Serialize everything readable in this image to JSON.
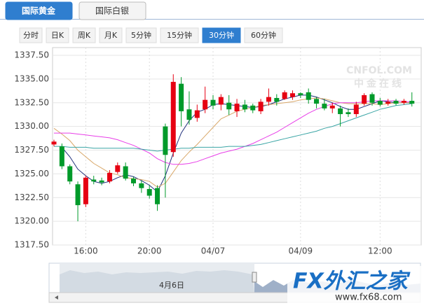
{
  "tabs": [
    "国际黄金",
    "国际白银"
  ],
  "active_tab": 0,
  "periods": [
    "分时",
    "日K",
    "周K",
    "月K",
    "5分钟",
    "15分钟",
    "30分钟",
    "60分钟"
  ],
  "active_period": 6,
  "watermark": {
    "title": "CNFOL.COM",
    "subtitle": "中金在线"
  },
  "logo": {
    "title": "FX外汇之家",
    "url": "www.fx68.com"
  },
  "navigator_label": "4月6日",
  "chart_data": {
    "type": "candlestick",
    "categories": [
      null,
      null,
      null,
      null,
      "16:00",
      null,
      null,
      null,
      null,
      null,
      null,
      null,
      "20:00",
      null,
      null,
      null,
      null,
      null,
      null,
      null,
      "04/07",
      null,
      null,
      null,
      null,
      null,
      null,
      null,
      null,
      null,
      null,
      "04/09",
      null,
      null,
      null,
      null,
      null,
      null,
      null,
      null,
      null,
      "12:00",
      null,
      null,
      null,
      null
    ],
    "open": [
      1328.1,
      1327.9,
      1325.8,
      1323.9,
      1321.8,
      1324.4,
      1324.3,
      1324.2,
      1325.2,
      1325.8,
      1324.5,
      1324.0,
      1323.4,
      1323.5,
      1330.0,
      1327.3,
      1334.5,
      1331.8,
      1330.9,
      1331.8,
      1332.8,
      1332.3,
      1332.5,
      1331.6,
      1332.3,
      1332.2,
      1331.6,
      1332.6,
      1333.0,
      1332.9,
      1333.1,
      1333.5,
      1333.6,
      1332.9,
      1332.4,
      1331.9,
      1331.9,
      1331.5,
      1331.3,
      1332.4,
      1333.4,
      1332.7,
      1332.4,
      1332.7,
      1332.5,
      1332.7
    ],
    "high": [
      1328.6,
      1328.2,
      1326.0,
      1324.2,
      1324.8,
      1324.8,
      1324.6,
      1325.4,
      1326.2,
      1326.2,
      1324.7,
      1324.3,
      1323.8,
      1323.8,
      1330.3,
      1335.5,
      1335.2,
      1333.7,
      1332.3,
      1334.2,
      1333.3,
      1333.4,
      1333.3,
      1332.9,
      1332.8,
      1332.4,
      1332.9,
      1334.0,
      1333.4,
      1333.8,
      1333.8,
      1333.6,
      1334.0,
      1333.1,
      1332.9,
      1332.5,
      1332.2,
      1331.9,
      1332.6,
      1333.5,
      1333.6,
      1333.0,
      1332.9,
      1332.9,
      1332.9,
      1333.6
    ],
    "low": [
      1327.9,
      1325.5,
      1323.9,
      1320.0,
      1321.5,
      1323.9,
      1323.8,
      1324.0,
      1325.0,
      1324.3,
      1323.7,
      1323.0,
      1322.4,
      1321.1,
      1322.5,
      1326.8,
      1330.0,
      1330.2,
      1330.5,
      1331.4,
      1331.8,
      1331.7,
      1331.2,
      1331.0,
      1331.5,
      1331.4,
      1331.3,
      1332.2,
      1332.2,
      1332.8,
      1332.8,
      1333.0,
      1332.4,
      1331.9,
      1331.7,
      1331.4,
      1330.0,
      1331.0,
      1331.0,
      1332.2,
      1332.2,
      1332.1,
      1332.2,
      1332.2,
      1332.3,
      1332.1
    ],
    "close": [
      1328.4,
      1325.8,
      1324.2,
      1321.7,
      1324.6,
      1324.2,
      1324.1,
      1325.1,
      1325.9,
      1324.5,
      1324.0,
      1323.5,
      1322.7,
      1321.8,
      1327.0,
      1334.7,
      1331.6,
      1330.7,
      1331.7,
      1332.8,
      1332.2,
      1333.1,
      1331.8,
      1332.4,
      1331.8,
      1331.7,
      1332.6,
      1333.1,
      1332.6,
      1333.6,
      1333.5,
      1333.3,
      1332.8,
      1332.4,
      1331.9,
      1332.2,
      1331.3,
      1331.3,
      1332.3,
      1333.3,
      1332.5,
      1332.3,
      1332.6,
      1332.4,
      1332.7,
      1332.4
    ],
    "up_color": "#e60012",
    "down_color": "#009a2a",
    "lines": [
      {
        "color": "#1f2f7a",
        "values": [
          null,
          1327.8,
          1326.8,
          1325.5,
          1324.8,
          1324.2,
          1324.0,
          1324.2,
          1324.6,
          1324.9,
          1324.7,
          1324.3,
          1323.8,
          1323.1,
          1324.8,
          1327.2,
          1329.3,
          1330.6,
          1331.5,
          1331.8,
          1332.3,
          1332.4,
          1332.3,
          1332.2,
          1332.1,
          1332.0,
          1332.1,
          1332.3,
          1332.6,
          1332.9,
          1333.1,
          1333.3,
          1333.3,
          1333.1,
          1332.8,
          1332.5,
          1332.1,
          1331.8,
          1331.8,
          1332.1,
          1332.4,
          1332.7,
          1332.6,
          1332.5,
          1332.5,
          1332.5
        ]
      },
      {
        "color": "#d9a86a",
        "values": [
          1329.8,
          1329.2,
          1328.5,
          1327.5,
          1326.8,
          1326.1,
          1325.6,
          1325.1,
          1324.9,
          1324.6,
          1324.5,
          1324.4,
          1324.2,
          1323.6,
          1324.0,
          1325.2,
          1326.4,
          1327.3,
          1328.1,
          1329.0,
          1329.9,
          1330.8,
          1331.2,
          1331.6,
          1331.8,
          1332.0,
          1332.2,
          1332.3,
          1332.4,
          1332.5,
          1332.6,
          1332.8,
          1332.9,
          1333.0,
          1332.9,
          1332.7,
          1332.5,
          1332.4,
          1332.4,
          1332.4,
          1332.4,
          1332.3,
          1332.4,
          1332.5,
          1332.5,
          1332.5
        ]
      },
      {
        "color": "#e83ee8",
        "values": [
          1329.3,
          1329.3,
          1329.3,
          1329.2,
          1329.1,
          1329.0,
          1328.9,
          1328.8,
          1328.6,
          1328.3,
          1328.0,
          1327.6,
          1327.2,
          1326.6,
          1326.2,
          1326.0,
          1326.0,
          1326.1,
          1326.3,
          1326.6,
          1326.9,
          1327.2,
          1327.4,
          1327.6,
          1327.9,
          1328.2,
          1328.6,
          1329.0,
          1329.4,
          1329.9,
          1330.4,
          1330.9,
          1331.4,
          1331.8,
          1332.1,
          1332.4,
          1332.5,
          1332.5,
          1332.5,
          1332.6,
          1332.7,
          1332.7,
          1332.7,
          1332.7,
          1332.6,
          1332.6
        ]
      },
      {
        "color": "#3aa5a5",
        "values": [
          1327.9,
          1327.9,
          1327.8,
          1327.8,
          1327.8,
          1327.7,
          1327.7,
          1327.7,
          1327.7,
          1327.7,
          1327.7,
          1327.6,
          1327.5,
          1327.4,
          1327.5,
          1327.6,
          1327.7,
          1327.7,
          1327.8,
          1327.8,
          1327.8,
          1327.8,
          1327.9,
          1327.9,
          1327.9,
          1328.0,
          1328.1,
          1328.3,
          1328.5,
          1328.7,
          1328.9,
          1329.1,
          1329.3,
          1329.5,
          1329.8,
          1330.0,
          1330.3,
          1330.6,
          1330.9,
          1331.2,
          1331.5,
          1331.8,
          1332.0,
          1332.2,
          1332.3,
          1332.4
        ]
      }
    ],
    "ylim": [
      1317.5,
      1337.5
    ],
    "yticks": [
      {
        "value": 1317.5,
        "label": "1317.50"
      },
      {
        "value": 1320,
        "label": "1320.00"
      },
      {
        "value": 1322.5,
        "label": "1322.50"
      },
      {
        "value": 1325,
        "label": "1325.00"
      },
      {
        "value": 1327.5,
        "label": "1327.50"
      },
      {
        "value": 1330,
        "label": "1330.00"
      },
      {
        "value": 1332.5,
        "label": "1332.50"
      },
      {
        "value": 1335,
        "label": "1335.00"
      },
      {
        "value": 1337.5,
        "label": "1337.50"
      }
    ],
    "grid": true
  }
}
